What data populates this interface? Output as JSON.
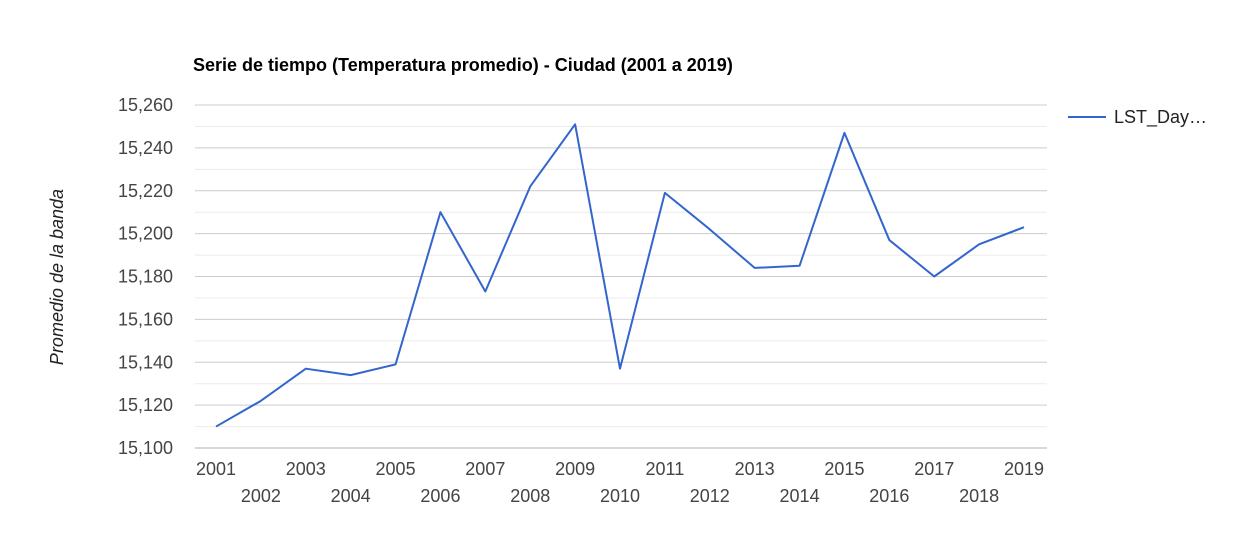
{
  "chart_data": {
    "type": "line",
    "title": "Serie de tiempo (Temperatura promedio) - Ciudad (2001 a 2019)",
    "xlabel": "",
    "ylabel": "Promedio de la banda",
    "ylim": [
      15100,
      15260
    ],
    "y_ticks": [
      "15,100",
      "15,120",
      "15,140",
      "15,160",
      "15,180",
      "15,200",
      "15,220",
      "15,240",
      "15,260"
    ],
    "grid": true,
    "legend_position": "right",
    "x": [
      2001,
      2002,
      2003,
      2004,
      2005,
      2006,
      2007,
      2008,
      2009,
      2010,
      2011,
      2012,
      2013,
      2014,
      2015,
      2016,
      2017,
      2018,
      2019
    ],
    "series": [
      {
        "name": "LST_Day…",
        "color": "#3366cc",
        "values": [
          15110,
          15122,
          15137,
          15134,
          15139,
          15210,
          15173,
          15222,
          15251,
          15137,
          15219,
          15202,
          15184,
          15185,
          15247,
          15197,
          15180,
          15195,
          15203
        ]
      }
    ]
  }
}
